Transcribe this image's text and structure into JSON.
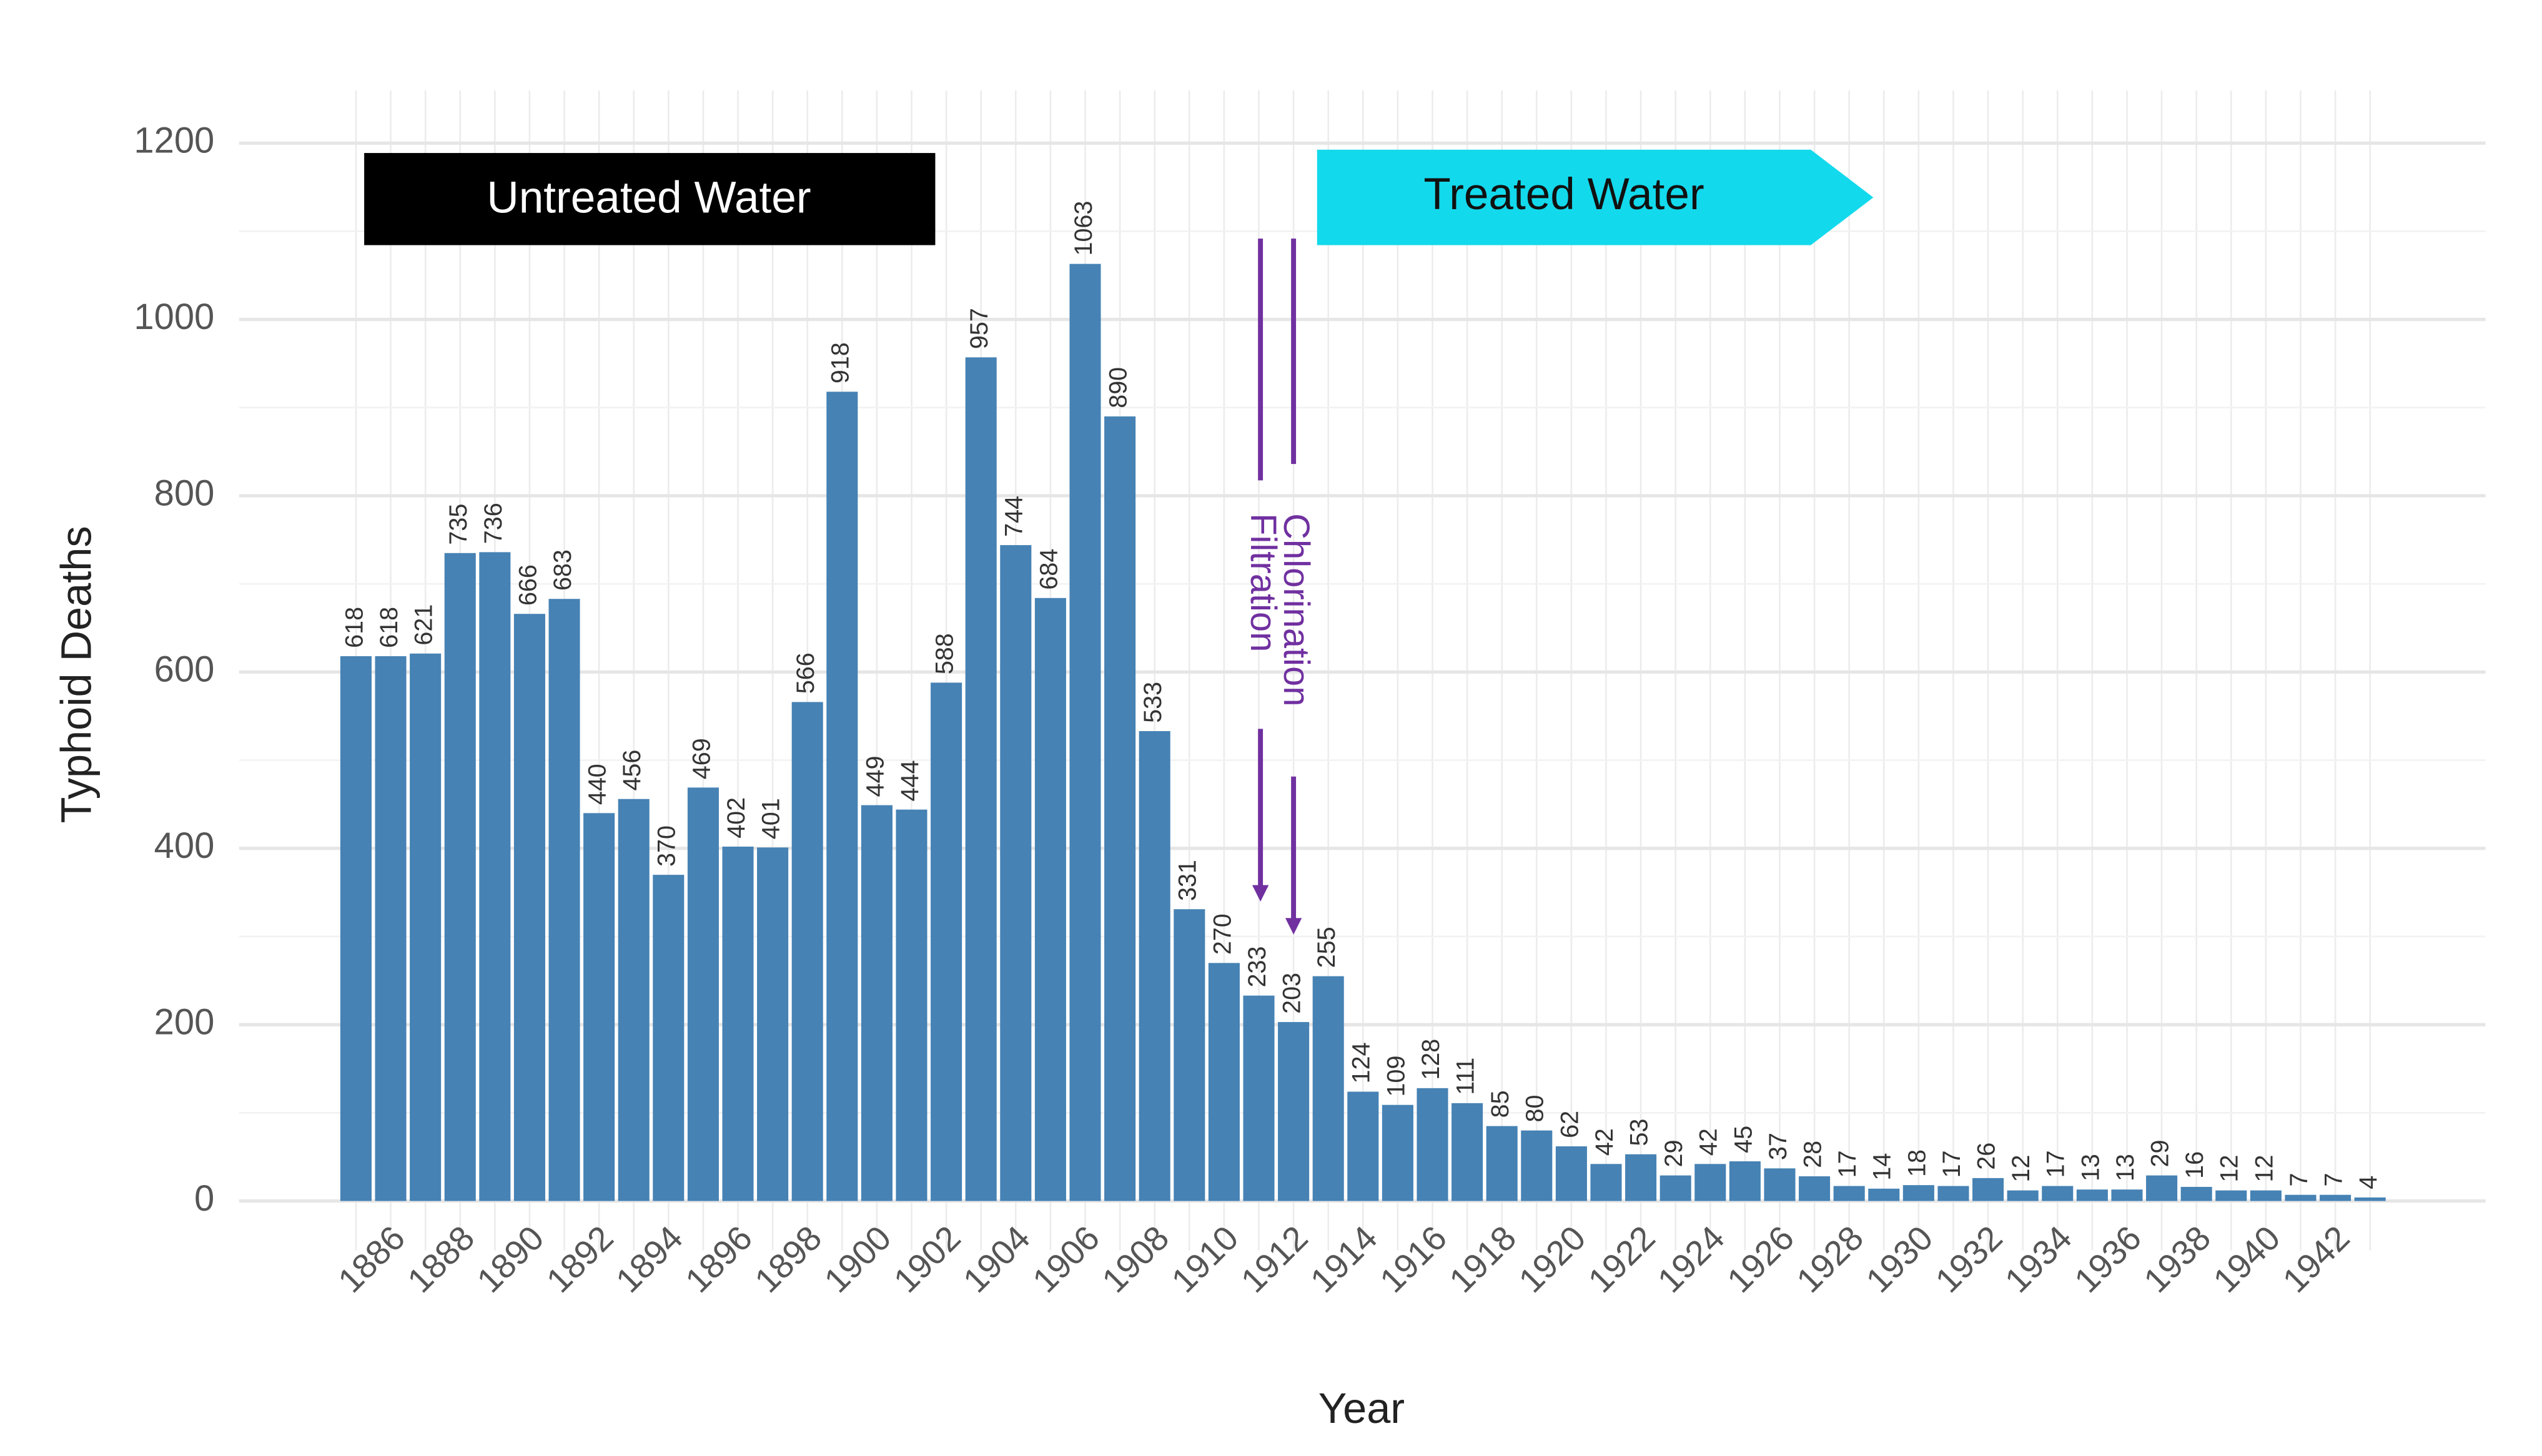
{
  "chart_data": {
    "type": "bar",
    "xlabel": "Year",
    "ylabel": "Typhoid  Deaths",
    "categories": [
      null,
      "1886",
      null,
      "1888",
      null,
      "1890",
      null,
      "1892",
      null,
      "1894",
      null,
      "1896",
      null,
      "1898",
      null,
      "1900",
      null,
      "1902",
      null,
      "1904",
      null,
      "1906",
      null,
      "1908",
      null,
      "1910",
      null,
      "1912",
      null,
      "1914",
      null,
      "1916",
      null,
      "1918",
      null,
      "1920",
      null,
      "1922",
      null,
      "1924",
      null,
      "1926",
      null,
      "1928",
      null,
      "1930",
      null,
      "1932",
      null,
      "1934",
      null,
      "1936",
      null,
      "1938",
      null,
      "1940",
      null,
      "1942",
      null
    ],
    "values": [
      618,
      618,
      621,
      735,
      736,
      666,
      683,
      440,
      456,
      370,
      469,
      402,
      401,
      566,
      918,
      449,
      444,
      588,
      957,
      744,
      684,
      1063,
      890,
      533,
      331,
      270,
      233,
      203,
      255,
      124,
      109,
      128,
      111,
      85,
      80,
      62,
      42,
      53,
      29,
      42,
      45,
      37,
      28,
      17,
      14,
      18,
      17,
      26,
      12,
      17,
      13,
      13,
      29,
      16,
      12,
      12,
      7,
      7,
      4
    ],
    "color": "#4682b4",
    "ylim": [
      0,
      1200
    ],
    "yticks": [
      0,
      200,
      400,
      600,
      800,
      1000,
      1200
    ],
    "grid": true,
    "annotations": [
      "Untreated Water",
      "Treated Water",
      "Filtration",
      "Chlorination"
    ]
  }
}
